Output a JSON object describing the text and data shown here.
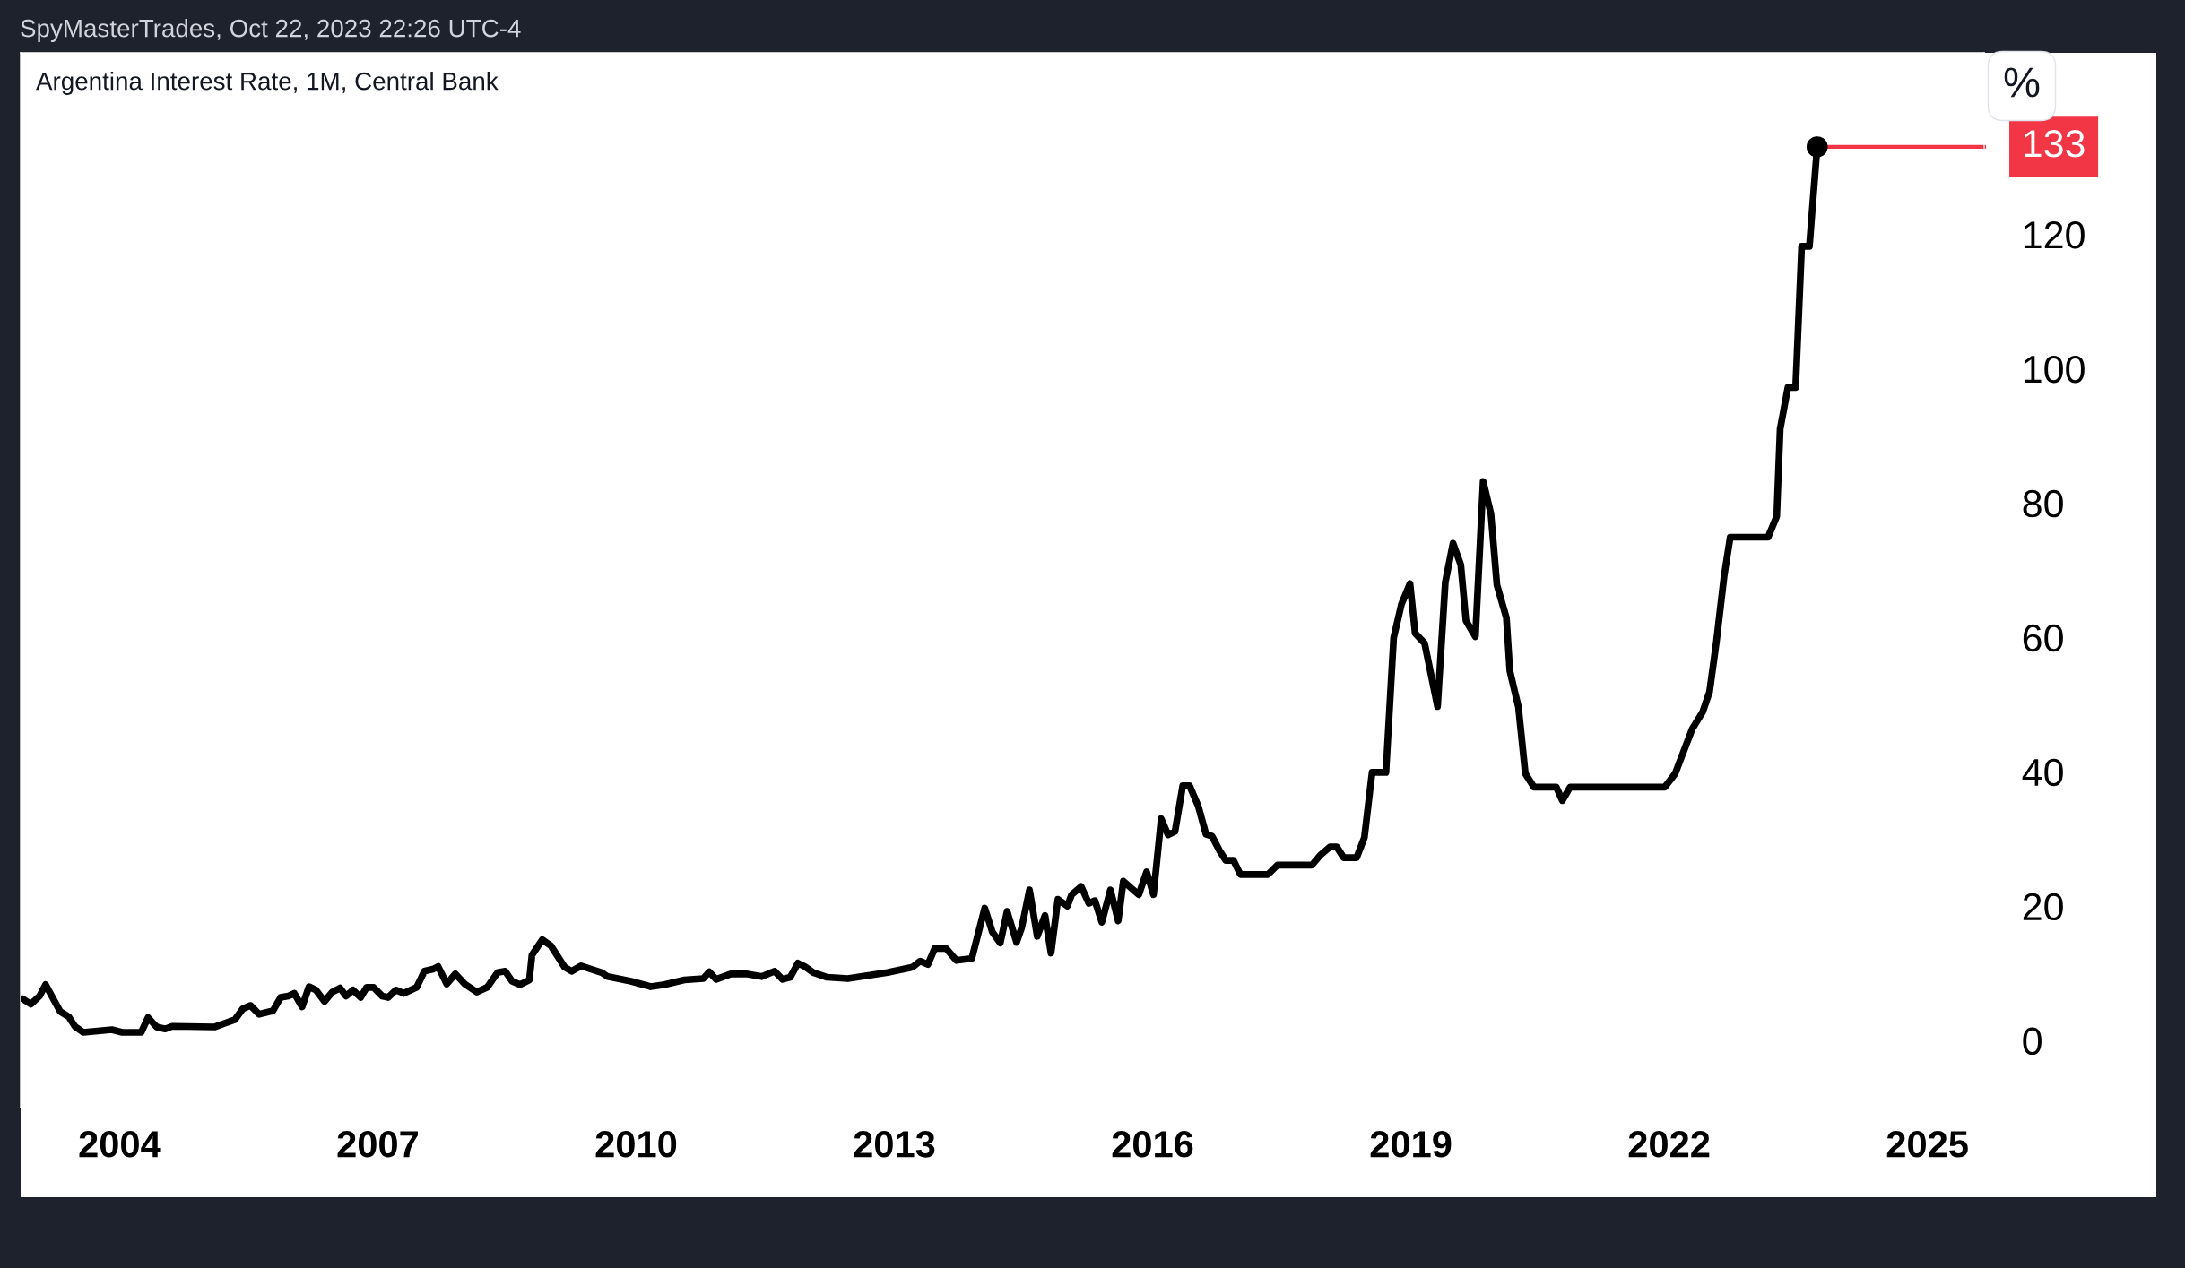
{
  "chart_data": {
    "type": "line",
    "title": "Argentina Interest Rate, 1M, Central Bank",
    "ylabel": "%",
    "annotations": [
      "SpyMasterTrades, Oct 22, 2023 22:26 UTC-4"
    ],
    "series": [
      {
        "color": "#000000",
        "x": [
          2002.87,
          2002.97,
          2003.07,
          2003.14,
          2003.31,
          2003.41,
          2003.48,
          2003.58,
          2003.91,
          2004.03,
          2004.25,
          2004.33,
          2004.43,
          2004.53,
          2004.61,
          2005.1,
          2005.34,
          2005.43,
          2005.52,
          2005.62,
          2005.78,
          2005.87,
          2005.96,
          2006.03,
          2006.12,
          2006.2,
          2006.28,
          2006.38,
          2006.47,
          2006.56,
          2006.63,
          2006.71,
          2006.8,
          2006.87,
          2006.95,
          2007.05,
          2007.12,
          2007.21,
          2007.3,
          2007.45,
          2007.54,
          2007.64,
          2007.7,
          2007.8,
          2007.9,
          2008.01,
          2008.15,
          2008.27,
          2008.39,
          2008.48,
          2008.56,
          2008.65,
          2008.76,
          2008.79,
          2008.91,
          2009.01,
          2009.17,
          2009.25,
          2009.36,
          2009.6,
          2009.67,
          2009.94,
          2010.17,
          2010.33,
          2010.56,
          2010.78,
          2010.85,
          2010.93,
          2011.1,
          2011.28,
          2011.46,
          2011.61,
          2011.7,
          2011.79,
          2011.88,
          2011.96,
          2012.06,
          2012.22,
          2012.46,
          2012.92,
          2013.21,
          2013.3,
          2013.39,
          2013.47,
          2013.6,
          2013.72,
          2013.9,
          2014.05,
          2014.14,
          2014.23,
          2014.31,
          2014.42,
          2014.48,
          2014.57,
          2014.66,
          2014.75,
          2014.82,
          2014.9,
          2015.01,
          2015.06,
          2015.17,
          2015.26,
          2015.33,
          2015.41,
          2015.51,
          2015.6,
          2015.66,
          2015.84,
          2015.93,
          2016.01,
          2016.1,
          2016.18,
          2016.26,
          2016.35,
          2016.43,
          2016.53,
          2016.62,
          2016.69,
          2016.78,
          2016.85,
          2016.94,
          2017.02,
          2017.34,
          2017.45,
          2017.85,
          2017.95,
          2018.06,
          2018.14,
          2018.22,
          2018.37,
          2018.46,
          2018.55,
          2018.71,
          2018.8,
          2018.89,
          2018.99,
          2019.05,
          2019.16,
          2019.31,
          2019.4,
          2019.49,
          2019.58,
          2019.64,
          2019.75,
          2019.84,
          2019.93,
          2020.0,
          2020.11,
          2020.15,
          2020.25,
          2020.33,
          2020.43,
          2020.69,
          2020.76,
          2020.85,
          2021.95,
          2022.07,
          2022.27,
          2022.39,
          2022.47,
          2022.55,
          2022.64,
          2022.71,
          2023.15,
          2023.25,
          2023.29,
          2023.38,
          2023.47,
          2023.54,
          2023.63,
          2023.72
        ],
        "values": [
          6.2,
          5.4,
          6.6,
          8.3,
          4.3,
          3.5,
          2.1,
          1.2,
          1.6,
          1.2,
          1.2,
          3.4,
          2.0,
          1.7,
          2.1,
          2.0,
          3.1,
          4.7,
          5.2,
          3.9,
          4.4,
          6.4,
          6.6,
          7.0,
          5.0,
          8.0,
          7.5,
          5.8,
          7.2,
          7.8,
          6.6,
          7.5,
          6.4,
          7.9,
          7.9,
          6.6,
          6.4,
          7.5,
          7.0,
          7.9,
          10.3,
          10.6,
          11.0,
          8.4,
          9.9,
          8.4,
          7.2,
          7.9,
          10.1,
          10.3,
          8.8,
          8.3,
          9.0,
          12.7,
          15.0,
          14.1,
          10.9,
          10.3,
          11.1,
          10.1,
          9.5,
          8.8,
          8.0,
          8.3,
          9.0,
          9.2,
          10.2,
          9.1,
          9.9,
          9.9,
          9.5,
          10.3,
          9.1,
          9.4,
          11.5,
          11.0,
          10.1,
          9.4,
          9.2,
          10.1,
          10.9,
          11.8,
          11.3,
          13.7,
          13.7,
          11.9,
          12.2,
          19.7,
          16.1,
          14.5,
          19.2,
          14.6,
          16.8,
          22.4,
          15.5,
          18.6,
          13.0,
          21.0,
          20.0,
          21.7,
          22.9,
          20.4,
          20.8,
          17.6,
          22.4,
          17.8,
          23.7,
          21.7,
          25.1,
          21.7,
          33.0,
          30.6,
          31.1,
          37.9,
          37.9,
          34.9,
          30.7,
          30.4,
          28.2,
          26.8,
          26.8,
          24.7,
          24.7,
          26.1,
          26.1,
          27.6,
          28.8,
          28.8,
          27.2,
          27.2,
          30.2,
          39.9,
          39.9,
          59.9,
          64.9,
          68.0,
          60.6,
          59.1,
          49.7,
          68.2,
          74.0,
          70.8,
          62.5,
          60.1,
          83.2,
          78.4,
          67.8,
          62.9,
          55.0,
          49.6,
          39.7,
          37.7,
          37.7,
          35.7,
          37.7,
          37.7,
          39.7,
          46.4,
          48.9,
          51.9,
          59.4,
          69.2,
          74.9,
          74.9,
          78.0,
          91.0,
          97.2,
          97.2,
          118.2,
          118.2,
          133
        ]
      }
    ],
    "xlim": [
      2002.85,
      2025.66
    ],
    "ylim": [
      -10,
      147
    ],
    "xticks": [
      {
        "value": 2004,
        "label": "2004"
      },
      {
        "value": 2007,
        "label": "2007"
      },
      {
        "value": 2010,
        "label": "2010"
      },
      {
        "value": 2013,
        "label": "2013"
      },
      {
        "value": 2016,
        "label": "2016"
      },
      {
        "value": 2019,
        "label": "2019"
      },
      {
        "value": 2022,
        "label": "2022"
      },
      {
        "value": 2025,
        "label": "2025"
      }
    ],
    "yticks": [
      0,
      20,
      40,
      60,
      80,
      100,
      120
    ],
    "ref_lines": [
      {
        "axis": "y",
        "value": 133,
        "label": "133",
        "color": "#f23645"
      }
    ],
    "grid": false,
    "legend": false
  }
}
